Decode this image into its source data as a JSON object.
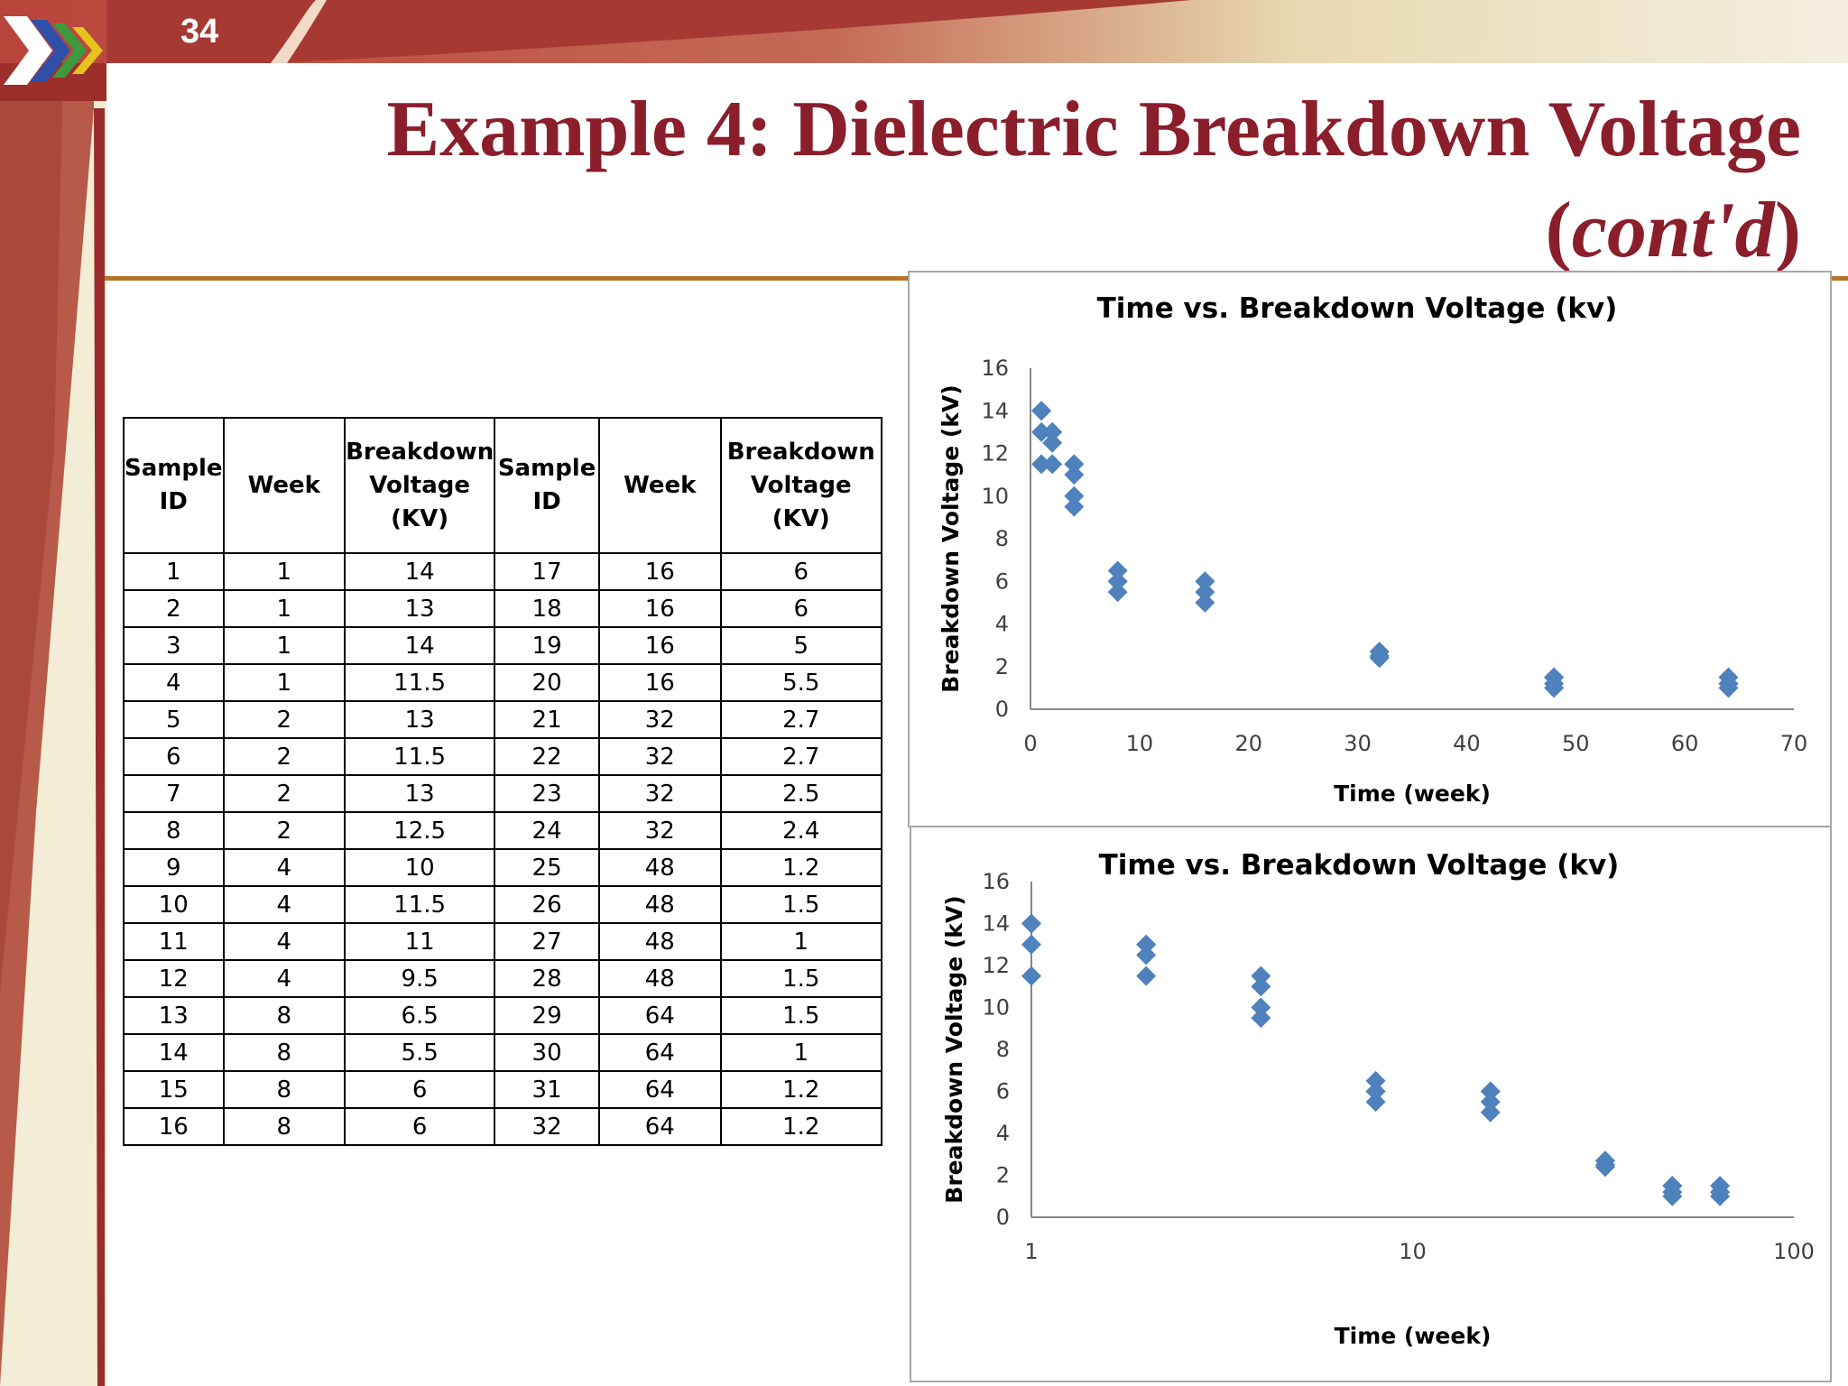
{
  "slide": {
    "number": "34",
    "title_main": "Example 4: Dielectric Breakdown Voltage",
    "title_open": "(",
    "title_italic": "cont'd",
    "title_close": ")"
  },
  "table": {
    "headers": [
      [
        "Sample",
        "ID"
      ],
      [
        "Week"
      ],
      [
        "Breakdown",
        "Voltage",
        "(KV)"
      ],
      [
        "Sample",
        "ID"
      ],
      [
        "Week"
      ],
      [
        "Breakdown",
        "Voltage",
        "(KV)"
      ]
    ],
    "rows": [
      [
        "1",
        "1",
        "14",
        "17",
        "16",
        "6"
      ],
      [
        "2",
        "1",
        "13",
        "18",
        "16",
        "6"
      ],
      [
        "3",
        "1",
        "14",
        "19",
        "16",
        "5"
      ],
      [
        "4",
        "1",
        "11.5",
        "20",
        "16",
        "5.5"
      ],
      [
        "5",
        "2",
        "13",
        "21",
        "32",
        "2.7"
      ],
      [
        "6",
        "2",
        "11.5",
        "22",
        "32",
        "2.7"
      ],
      [
        "7",
        "2",
        "13",
        "23",
        "32",
        "2.5"
      ],
      [
        "8",
        "2",
        "12.5",
        "24",
        "32",
        "2.4"
      ],
      [
        "9",
        "4",
        "10",
        "25",
        "48",
        "1.2"
      ],
      [
        "10",
        "4",
        "11.5",
        "26",
        "48",
        "1.5"
      ],
      [
        "11",
        "4",
        "11",
        "27",
        "48",
        "1"
      ],
      [
        "12",
        "4",
        "9.5",
        "28",
        "48",
        "1.5"
      ],
      [
        "13",
        "8",
        "6.5",
        "29",
        "64",
        "1.5"
      ],
      [
        "14",
        "8",
        "5.5",
        "30",
        "64",
        "1"
      ],
      [
        "15",
        "8",
        "6",
        "31",
        "64",
        "1.2"
      ],
      [
        "16",
        "8",
        "6",
        "32",
        "64",
        "1.2"
      ]
    ]
  },
  "colors": {
    "title": "#8b1e2b",
    "marker": "#4f81bd",
    "rule": "#b5762a"
  },
  "chart_data": [
    {
      "type": "scatter",
      "title": "Time vs. Breakdown Voltage (kv)",
      "xlabel": "Time (week)",
      "ylabel": "Breakdown Voltage (kV)",
      "xscale": "linear",
      "xlim": [
        0,
        70
      ],
      "ylim": [
        0,
        16
      ],
      "xticks": [
        0,
        10,
        20,
        30,
        40,
        50,
        60,
        70
      ],
      "yticks": [
        0,
        2,
        4,
        6,
        8,
        10,
        12,
        14,
        16
      ],
      "grid": false,
      "legend": "none",
      "marker": "diamond",
      "x": [
        1,
        1,
        1,
        1,
        2,
        2,
        2,
        2,
        4,
        4,
        4,
        4,
        8,
        8,
        8,
        8,
        16,
        16,
        16,
        16,
        32,
        32,
        32,
        32,
        48,
        48,
        48,
        48,
        64,
        64,
        64,
        64
      ],
      "y": [
        14,
        13,
        14,
        11.5,
        13,
        11.5,
        13,
        12.5,
        10,
        11.5,
        11,
        9.5,
        6.5,
        5.5,
        6,
        6,
        6,
        6,
        5,
        5.5,
        2.7,
        2.7,
        2.5,
        2.4,
        1.2,
        1.5,
        1,
        1.5,
        1.5,
        1,
        1.2,
        1.2
      ]
    },
    {
      "type": "scatter",
      "title": "Time vs. Breakdown Voltage (kv)",
      "xlabel": "Time (week)",
      "ylabel": "Breakdown Voltage (kV)",
      "xscale": "log",
      "xlim": [
        1,
        100
      ],
      "ylim": [
        0,
        16
      ],
      "xticks": [
        1,
        10,
        100
      ],
      "yticks": [
        0,
        2,
        4,
        6,
        8,
        10,
        12,
        14,
        16
      ],
      "grid": false,
      "legend": "none",
      "marker": "diamond",
      "x": [
        1,
        1,
        1,
        1,
        2,
        2,
        2,
        2,
        4,
        4,
        4,
        4,
        8,
        8,
        8,
        8,
        16,
        16,
        16,
        16,
        32,
        32,
        32,
        32,
        48,
        48,
        48,
        48,
        64,
        64,
        64,
        64
      ],
      "y": [
        14,
        13,
        14,
        11.5,
        13,
        11.5,
        13,
        12.5,
        10,
        11.5,
        11,
        9.5,
        6.5,
        5.5,
        6,
        6,
        6,
        6,
        5,
        5.5,
        2.7,
        2.7,
        2.5,
        2.4,
        1.2,
        1.5,
        1,
        1.5,
        1.5,
        1,
        1.2,
        1.2
      ]
    }
  ]
}
